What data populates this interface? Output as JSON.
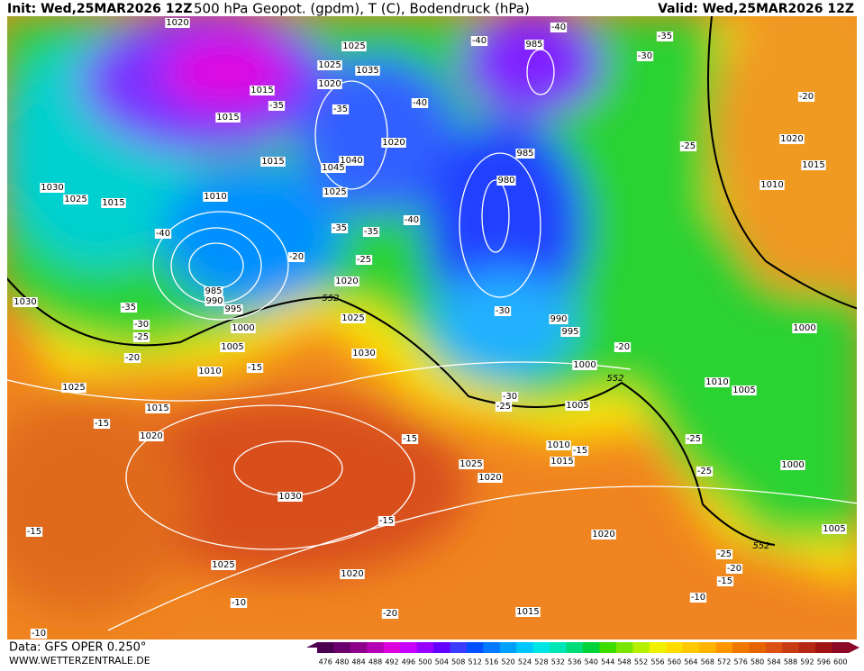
{
  "header": {
    "init": "Init: Wed,25MAR2026 12Z",
    "title": "500 hPa Geopot. (gpdm), T (C), Bodendruck (hPa)",
    "valid": "Valid: Wed,25MAR2026 12Z"
  },
  "footer": {
    "source": "Data: GFS OPER 0.250°",
    "site": "WWW.WETTERZENTRALE.DE"
  },
  "colorbar": {
    "ticks": [
      476,
      480,
      484,
      488,
      492,
      496,
      500,
      504,
      508,
      512,
      516,
      520,
      524,
      528,
      532,
      536,
      540,
      544,
      548,
      552,
      556,
      560,
      564,
      568,
      572,
      576,
      580,
      584,
      588,
      592,
      596,
      600
    ],
    "colors": [
      "#4b0050",
      "#6a006e",
      "#8c008c",
      "#b400b4",
      "#dc00dc",
      "#c800ff",
      "#9600ff",
      "#6400ff",
      "#3c3cff",
      "#0050ff",
      "#0078ff",
      "#00a0ff",
      "#00c8ff",
      "#00e6e6",
      "#00e6b4",
      "#00dc78",
      "#00d23c",
      "#3cdc00",
      "#78e600",
      "#b4f000",
      "#f0f000",
      "#ffdc00",
      "#ffc800",
      "#ffb400",
      "#ff9600",
      "#f07800",
      "#e66400",
      "#dc5014",
      "#c83c14",
      "#b42814",
      "#a01414",
      "#8c0a28"
    ]
  },
  "map": {
    "pressure_labels": [
      "1020",
      "1025",
      "1025",
      "1035",
      "1020",
      "1015",
      "1015",
      "985",
      "1020",
      "1015",
      "1040",
      "1045",
      "1030",
      "1025",
      "1015",
      "1010",
      "1025",
      "985",
      "980",
      "985",
      "990",
      "995",
      "1030",
      "1020",
      "1025",
      "1000",
      "1005",
      "1010",
      "1030",
      "990",
      "995",
      "1000",
      "1025",
      "1015",
      "1020",
      "1005",
      "1010",
      "1015",
      "1025",
      "1020",
      "1030",
      "1025",
      "1020",
      "1020",
      "1015",
      "1010",
      "1005",
      "1000",
      "1000",
      "1005",
      "1020",
      "1015",
      "1010"
    ],
    "geopotential_labels": [
      "552",
      "552",
      "552"
    ],
    "temperature_labels": [
      "-40",
      "-40",
      "-35",
      "-30",
      "-40",
      "-35",
      "-35",
      "-20",
      "-25",
      "-40",
      "-35",
      "-35",
      "-40",
      "-25",
      "-20",
      "-35",
      "-30",
      "-25",
      "-20",
      "-15",
      "-30",
      "-20",
      "-30",
      "-25",
      "-15",
      "-15",
      "-15",
      "-25",
      "-25",
      "-15",
      "-15",
      "-25",
      "-20",
      "-15",
      "-10",
      "-10",
      "-20",
      "-10"
    ]
  }
}
